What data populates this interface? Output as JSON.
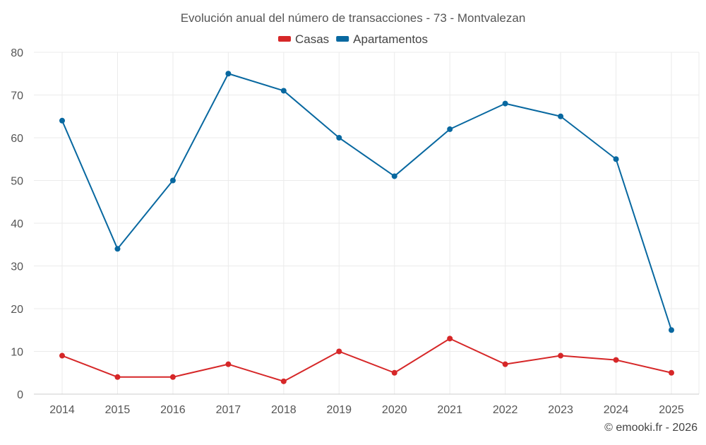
{
  "chart_data": {
    "type": "line",
    "title": "Evolución anual del número de transacciones - 73 - Montvalezan",
    "xlabel": "",
    "ylabel": "",
    "categories": [
      "2014",
      "2015",
      "2016",
      "2017",
      "2018",
      "2019",
      "2020",
      "2021",
      "2022",
      "2023",
      "2024",
      "2025"
    ],
    "ylim": [
      0,
      80
    ],
    "yticks": [
      0,
      10,
      20,
      30,
      40,
      50,
      60,
      70,
      80
    ],
    "grid": true,
    "legend_position": "top-center",
    "series": [
      {
        "name": "Casas",
        "color": "#d62728",
        "values": [
          9,
          4,
          4,
          7,
          3,
          10,
          5,
          13,
          7,
          9,
          8,
          5
        ]
      },
      {
        "name": "Apartamentos",
        "color": "#0868a0",
        "values": [
          64,
          34,
          50,
          75,
          71,
          60,
          51,
          62,
          68,
          65,
          55,
          15
        ]
      }
    ]
  },
  "credit": "© emooki.fr - 2026"
}
